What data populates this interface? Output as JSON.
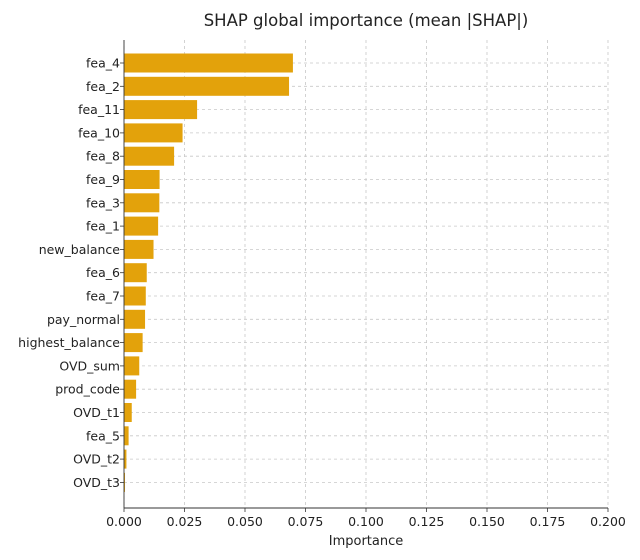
{
  "chart_data": {
    "type": "bar",
    "orientation": "horizontal",
    "title": "SHAP global importance (mean |SHAP|)",
    "xlabel": "Importance",
    "ylabel": "",
    "xlim": [
      0,
      0.2
    ],
    "xticks": [
      "0.000",
      "0.025",
      "0.050",
      "0.075",
      "0.100",
      "0.125",
      "0.150",
      "0.175",
      "0.200"
    ],
    "grid": true,
    "bar_color": "#e3a20b",
    "categories": [
      "fea_4",
      "fea_2",
      "fea_11",
      "fea_10",
      "fea_8",
      "fea_9",
      "fea_3",
      "fea_1",
      "new_balance",
      "fea_6",
      "fea_7",
      "pay_normal",
      "highest_balance",
      "OVD_sum",
      "prod_code",
      "OVD_t1",
      "fea_5",
      "OVD_t2",
      "OVD_t3"
    ],
    "values": [
      0.0698,
      0.0682,
      0.0302,
      0.0242,
      0.0207,
      0.0147,
      0.0146,
      0.0141,
      0.0122,
      0.0094,
      0.009,
      0.0087,
      0.0077,
      0.0063,
      0.005,
      0.0032,
      0.0019,
      0.001,
      0.0004
    ]
  }
}
